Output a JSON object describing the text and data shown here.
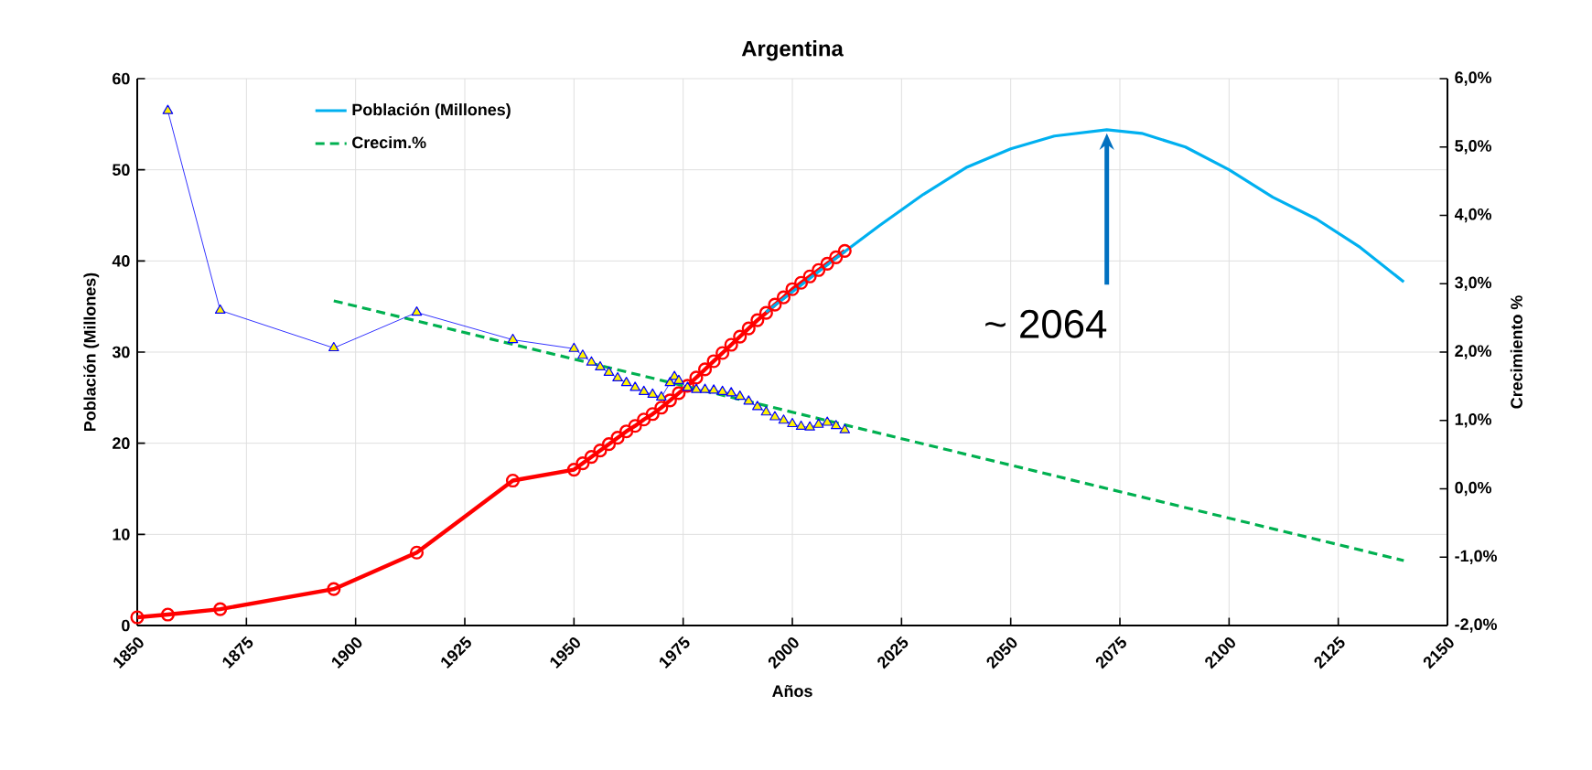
{
  "chart_data": {
    "type": "line",
    "title": "Argentina",
    "xlabel": "Años",
    "ylabel": "Población (Millones)",
    "y2label": "Crecimiento %",
    "xlim": [
      1850,
      2150
    ],
    "xticks": [
      1850,
      1875,
      1900,
      1925,
      1950,
      1975,
      2000,
      2025,
      2050,
      2075,
      2100,
      2125,
      2150
    ],
    "ylim": [
      0,
      60
    ],
    "yticks": [
      0,
      10,
      20,
      30,
      40,
      50,
      60
    ],
    "y2lim": [
      -2,
      6
    ],
    "y2ticks": [
      {
        "value": -2,
        "label": "-2,0%"
      },
      {
        "value": -1,
        "label": "-1,0%"
      },
      {
        "value": 0,
        "label": "0,0%"
      },
      {
        "value": 1,
        "label": "1,0%"
      },
      {
        "value": 2,
        "label": "2,0%"
      },
      {
        "value": 3,
        "label": "3,0%"
      },
      {
        "value": 4,
        "label": "4,0%"
      },
      {
        "value": 5,
        "label": "5,0%"
      },
      {
        "value": 6,
        "label": "6,0%"
      }
    ],
    "grid": true,
    "legend": "top left",
    "annotations": [
      {
        "text": "~ 2064",
        "x": 2072,
        "y": 54.4
      }
    ],
    "series": [
      {
        "name": "Población (Millones)",
        "color": "#00b0f0",
        "marker": "none",
        "line_style": "solid",
        "x": [
          1994,
          2000,
          2010,
          2020,
          2030,
          2040,
          2050,
          2060,
          2072,
          2080,
          2090,
          2100,
          2110,
          2120,
          2130,
          2140
        ],
        "values": [
          34.4,
          36.6,
          40.3,
          43.9,
          47.3,
          50.3,
          52.3,
          53.7,
          54.4,
          54.0,
          52.5,
          50.0,
          47.0,
          44.6,
          41.5,
          37.7
        ]
      },
      {
        "name": "Crecim.%",
        "axis": "y2",
        "color": "#00b050",
        "marker": "none",
        "line_style": "dashed",
        "x": [
          1895,
          2140
        ],
        "values": [
          2.75,
          -1.05
        ]
      },
      {
        "color": "#ff0000",
        "marker": "circle",
        "line_style": "solid",
        "x": [
          1850,
          1857,
          1869,
          1895,
          1914,
          1936,
          1950,
          1952,
          1954,
          1956,
          1958,
          1960,
          1962,
          1964,
          1966,
          1968,
          1970,
          1972,
          1974,
          1976,
          1978,
          1980,
          1982,
          1984,
          1986,
          1988,
          1990,
          1992,
          1994,
          1996,
          1998,
          2000,
          2002,
          2004,
          2006,
          2008,
          2010,
          2012
        ],
        "values": [
          0.9,
          1.2,
          1.8,
          4.0,
          8.0,
          15.9,
          17.1,
          17.8,
          18.5,
          19.2,
          19.9,
          20.6,
          21.3,
          21.9,
          22.6,
          23.2,
          23.9,
          24.7,
          25.5,
          26.3,
          27.2,
          28.1,
          29.0,
          29.9,
          30.8,
          31.7,
          32.6,
          33.5,
          34.3,
          35.2,
          36.0,
          36.9,
          37.6,
          38.3,
          39.0,
          39.7,
          40.4,
          41.1
        ]
      },
      {
        "axis": "y2",
        "color": "#0000ff",
        "marker": "triangle",
        "line_style": "solid",
        "x": [
          1857,
          1869,
          1895,
          1914,
          1936,
          1950,
          1952,
          1954,
          1956,
          1958,
          1960,
          1962,
          1964,
          1966,
          1968,
          1970,
          1972,
          1973,
          1974,
          1976,
          1978,
          1980,
          1982,
          1984,
          1986,
          1988,
          1990,
          1992,
          1994,
          1996,
          1998,
          2000,
          2002,
          2004,
          2006,
          2008,
          2010,
          2012
        ],
        "values": [
          5.53,
          2.61,
          2.06,
          2.58,
          2.18,
          2.05,
          1.95,
          1.85,
          1.78,
          1.7,
          1.62,
          1.55,
          1.48,
          1.42,
          1.38,
          1.34,
          1.55,
          1.64,
          1.58,
          1.48,
          1.45,
          1.45,
          1.44,
          1.42,
          1.4,
          1.35,
          1.28,
          1.2,
          1.12,
          1.05,
          1.0,
          0.95,
          0.91,
          0.9,
          0.94,
          0.97,
          0.92,
          0.86
        ]
      }
    ]
  }
}
